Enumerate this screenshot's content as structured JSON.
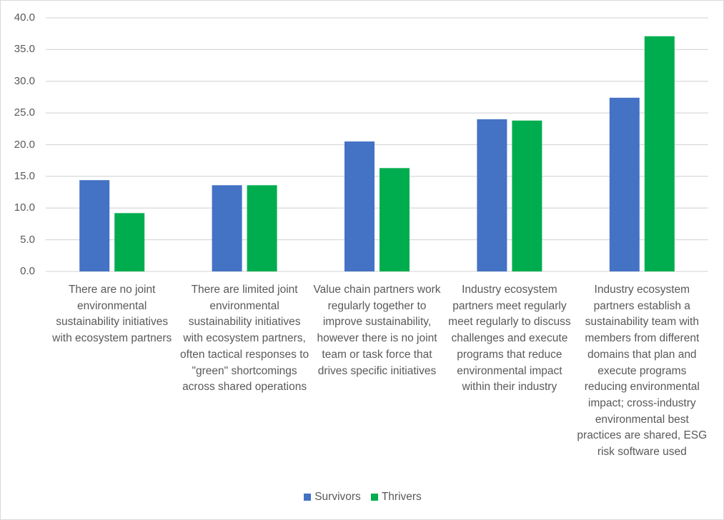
{
  "chart_data": {
    "type": "bar",
    "title": "",
    "xlabel": "",
    "ylabel": "",
    "ylim": [
      0,
      40
    ],
    "yticks": [
      "0.0",
      "5.0",
      "10.0",
      "15.0",
      "20.0",
      "25.0",
      "30.0",
      "35.0",
      "40.0"
    ],
    "grid": true,
    "legend_position": "bottom",
    "categories": [
      "There are no joint environmental sustainability initiatives with ecosystem partners",
      "There are limited joint environmental sustainability initiatives with ecosystem partners, often tactical responses to \"green\" shortcomings across shared operations",
      "Value chain partners work regularly together to improve sustainability, however there is no joint team or task force that drives specific initiatives",
      "Industry ecosystem partners meet regularly meet regularly to discuss challenges and execute programs that reduce environmental impact within their industry",
      "Industry ecosystem partners establish a sustainability team with members from different domains that plan and execute programs reducing environmental impact; cross-industry environmental best practices are shared, ESG risk software used"
    ],
    "series": [
      {
        "name": "Survivors",
        "color": "#4472C4",
        "values": [
          14.4,
          13.6,
          20.5,
          24.0,
          27.4
        ]
      },
      {
        "name": "Thrivers",
        "color": "#00AD4E",
        "values": [
          9.2,
          13.6,
          16.3,
          23.8,
          37.1
        ]
      }
    ]
  }
}
